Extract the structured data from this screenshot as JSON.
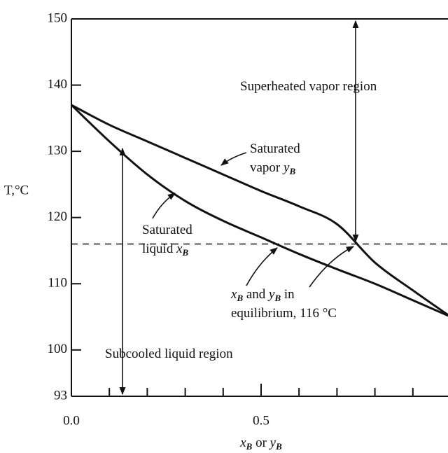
{
  "chart_data": {
    "type": "line",
    "x_label": [
      {
        "t": "x"
      },
      {
        "t": "B",
        "sub": true
      },
      {
        "t": " or "
      },
      {
        "t": "y"
      },
      {
        "t": "B",
        "sub": true
      }
    ],
    "y_label": "T,°C",
    "x": [
      0,
      0.1,
      0.2,
      0.3,
      0.4,
      0.5,
      0.6,
      0.7,
      0.8,
      0.9,
      1.0
    ],
    "series": [
      {
        "color": "#111111",
        "values": [
          137,
          131.5,
          126.5,
          122.5,
          119.5,
          117,
          114.5,
          112.2,
          110,
          107.5,
          105
        ]
      },
      {
        "color": "#111111",
        "values": [
          137,
          134,
          131.5,
          129,
          126.5,
          124,
          121.7,
          119,
          113.2,
          109,
          105
        ]
      }
    ],
    "xlim": [
      0,
      1
    ],
    "ylim": [
      93,
      150
    ],
    "xticks": [
      {
        "value": 0,
        "label": "0.0"
      },
      0.5
    ],
    "xminorticks": [
      0.1,
      0.2,
      0.3,
      0.4,
      0.6,
      0.7,
      0.8,
      0.9
    ],
    "yticks": [
      93,
      100,
      110,
      120,
      130,
      140,
      150
    ],
    "reference_line": 116,
    "annotations": [
      {
        "lines": [
          [
            {
              "t": "Superheated vapor region"
            }
          ]
        ]
      },
      {
        "lines": [
          [
            {
              "t": "Saturated"
            }
          ],
          [
            {
              "t": "vapor "
            },
            {
              "t": "y"
            },
            {
              "t": "B",
              "sub": true
            }
          ]
        ]
      },
      {
        "lines": [
          [
            {
              "t": "Saturated"
            }
          ],
          [
            {
              "t": "liquid "
            },
            {
              "t": "x"
            },
            {
              "t": "B",
              "sub": true
            }
          ]
        ]
      },
      {
        "lines": [
          [
            {
              "t": "x"
            },
            {
              "t": "B",
              "sub": true
            },
            {
              "t": " and "
            },
            {
              "t": "y"
            },
            {
              "t": "B",
              "sub": true
            },
            {
              "t": " in"
            }
          ],
          [
            {
              "t": "equilibrium, 116 °C"
            }
          ]
        ]
      },
      {
        "lines": [
          [
            {
              "t": "Subcooled liquid region"
            }
          ]
        ]
      }
    ]
  }
}
